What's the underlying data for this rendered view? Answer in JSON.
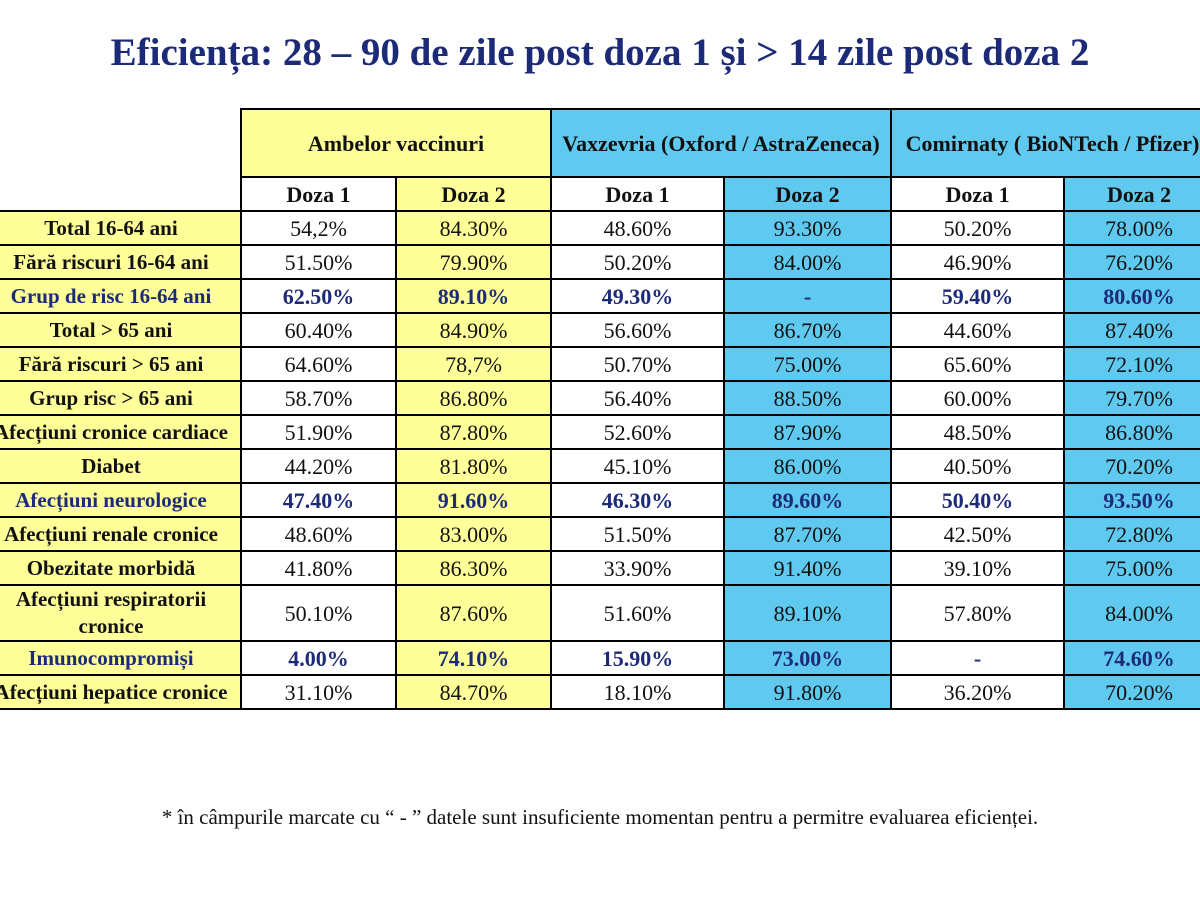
{
  "title": "Eficiența: 28 – 90 de zile post doza 1 și > 14 zile post doza 2",
  "table": {
    "groups": [
      {
        "label": "Ambelor vaccinuri",
        "color": "#ffff99"
      },
      {
        "label": "Vaxzevria (Oxford / AstraZeneca)",
        "color": "#5fc9ef"
      },
      {
        "label": "Comirnaty ( BioNTech / Pfizer)",
        "color": "#5fc9ef"
      }
    ],
    "subheaders": [
      "Doza 1",
      "Doza 2",
      "Doza 1",
      "Doza 2",
      "Doza 1",
      "Doza 2"
    ],
    "rows": [
      {
        "label": "Total 16-64 ani",
        "values": [
          "54,2%",
          "84.30%",
          "48.60%",
          "93.30%",
          "50.20%",
          "78.00%"
        ]
      },
      {
        "label": "Fără riscuri 16-64 ani",
        "values": [
          "51.50%",
          "79.90%",
          "50.20%",
          "84.00%",
          "46.90%",
          "76.20%"
        ]
      },
      {
        "label": "Grup de risc 16-64 ani",
        "values": [
          "62.50%",
          "89.10%",
          "49.30%",
          "-",
          "59.40%",
          "80.60%"
        ],
        "bold": true
      },
      {
        "label": "Total > 65 ani",
        "values": [
          "60.40%",
          "84.90%",
          "56.60%",
          "86.70%",
          "44.60%",
          "87.40%"
        ]
      },
      {
        "label": "Fără riscuri > 65 ani",
        "values": [
          "64.60%",
          "78,7%",
          "50.70%",
          "75.00%",
          "65.60%",
          "72.10%"
        ]
      },
      {
        "label": "Grup risc > 65 ani",
        "values": [
          "58.70%",
          "86.80%",
          "56.40%",
          "88.50%",
          "60.00%",
          "79.70%"
        ]
      },
      {
        "label": "Afecțiuni cronice cardiace",
        "values": [
          "51.90%",
          "87.80%",
          "52.60%",
          "87.90%",
          "48.50%",
          "86.80%"
        ]
      },
      {
        "label": "Diabet",
        "values": [
          "44.20%",
          "81.80%",
          "45.10%",
          "86.00%",
          "40.50%",
          "70.20%"
        ]
      },
      {
        "label": "Afecțiuni neurologice",
        "values": [
          "47.40%",
          "91.60%",
          "46.30%",
          "89.60%",
          "50.40%",
          "93.50%"
        ],
        "bold": true
      },
      {
        "label": "Afecțiuni renale cronice",
        "values": [
          "48.60%",
          "83.00%",
          "51.50%",
          "87.70%",
          "42.50%",
          "72.80%"
        ]
      },
      {
        "label": "Obezitate morbidă",
        "values": [
          "41.80%",
          "86.30%",
          "33.90%",
          "91.40%",
          "39.10%",
          "75.00%"
        ]
      },
      {
        "label": "Afecțiuni respiratorii cronice",
        "values": [
          "50.10%",
          "87.60%",
          "51.60%",
          "89.10%",
          "57.80%",
          "84.00%"
        ]
      },
      {
        "label": "Imunocompromiși",
        "values": [
          "4.00%",
          "74.10%",
          "15.90%",
          "73.00%",
          "-",
          "74.60%"
        ],
        "bold": true
      },
      {
        "label": "Afecțiuni hepatice cronice",
        "values": [
          "31.10%",
          "84.70%",
          "18.10%",
          "91.80%",
          "36.20%",
          "70.20%"
        ]
      }
    ]
  },
  "footnote": "* în câmpurile marcate cu “ - ” datele sunt insuficiente momentan pentru a permitre evaluarea eficienței."
}
